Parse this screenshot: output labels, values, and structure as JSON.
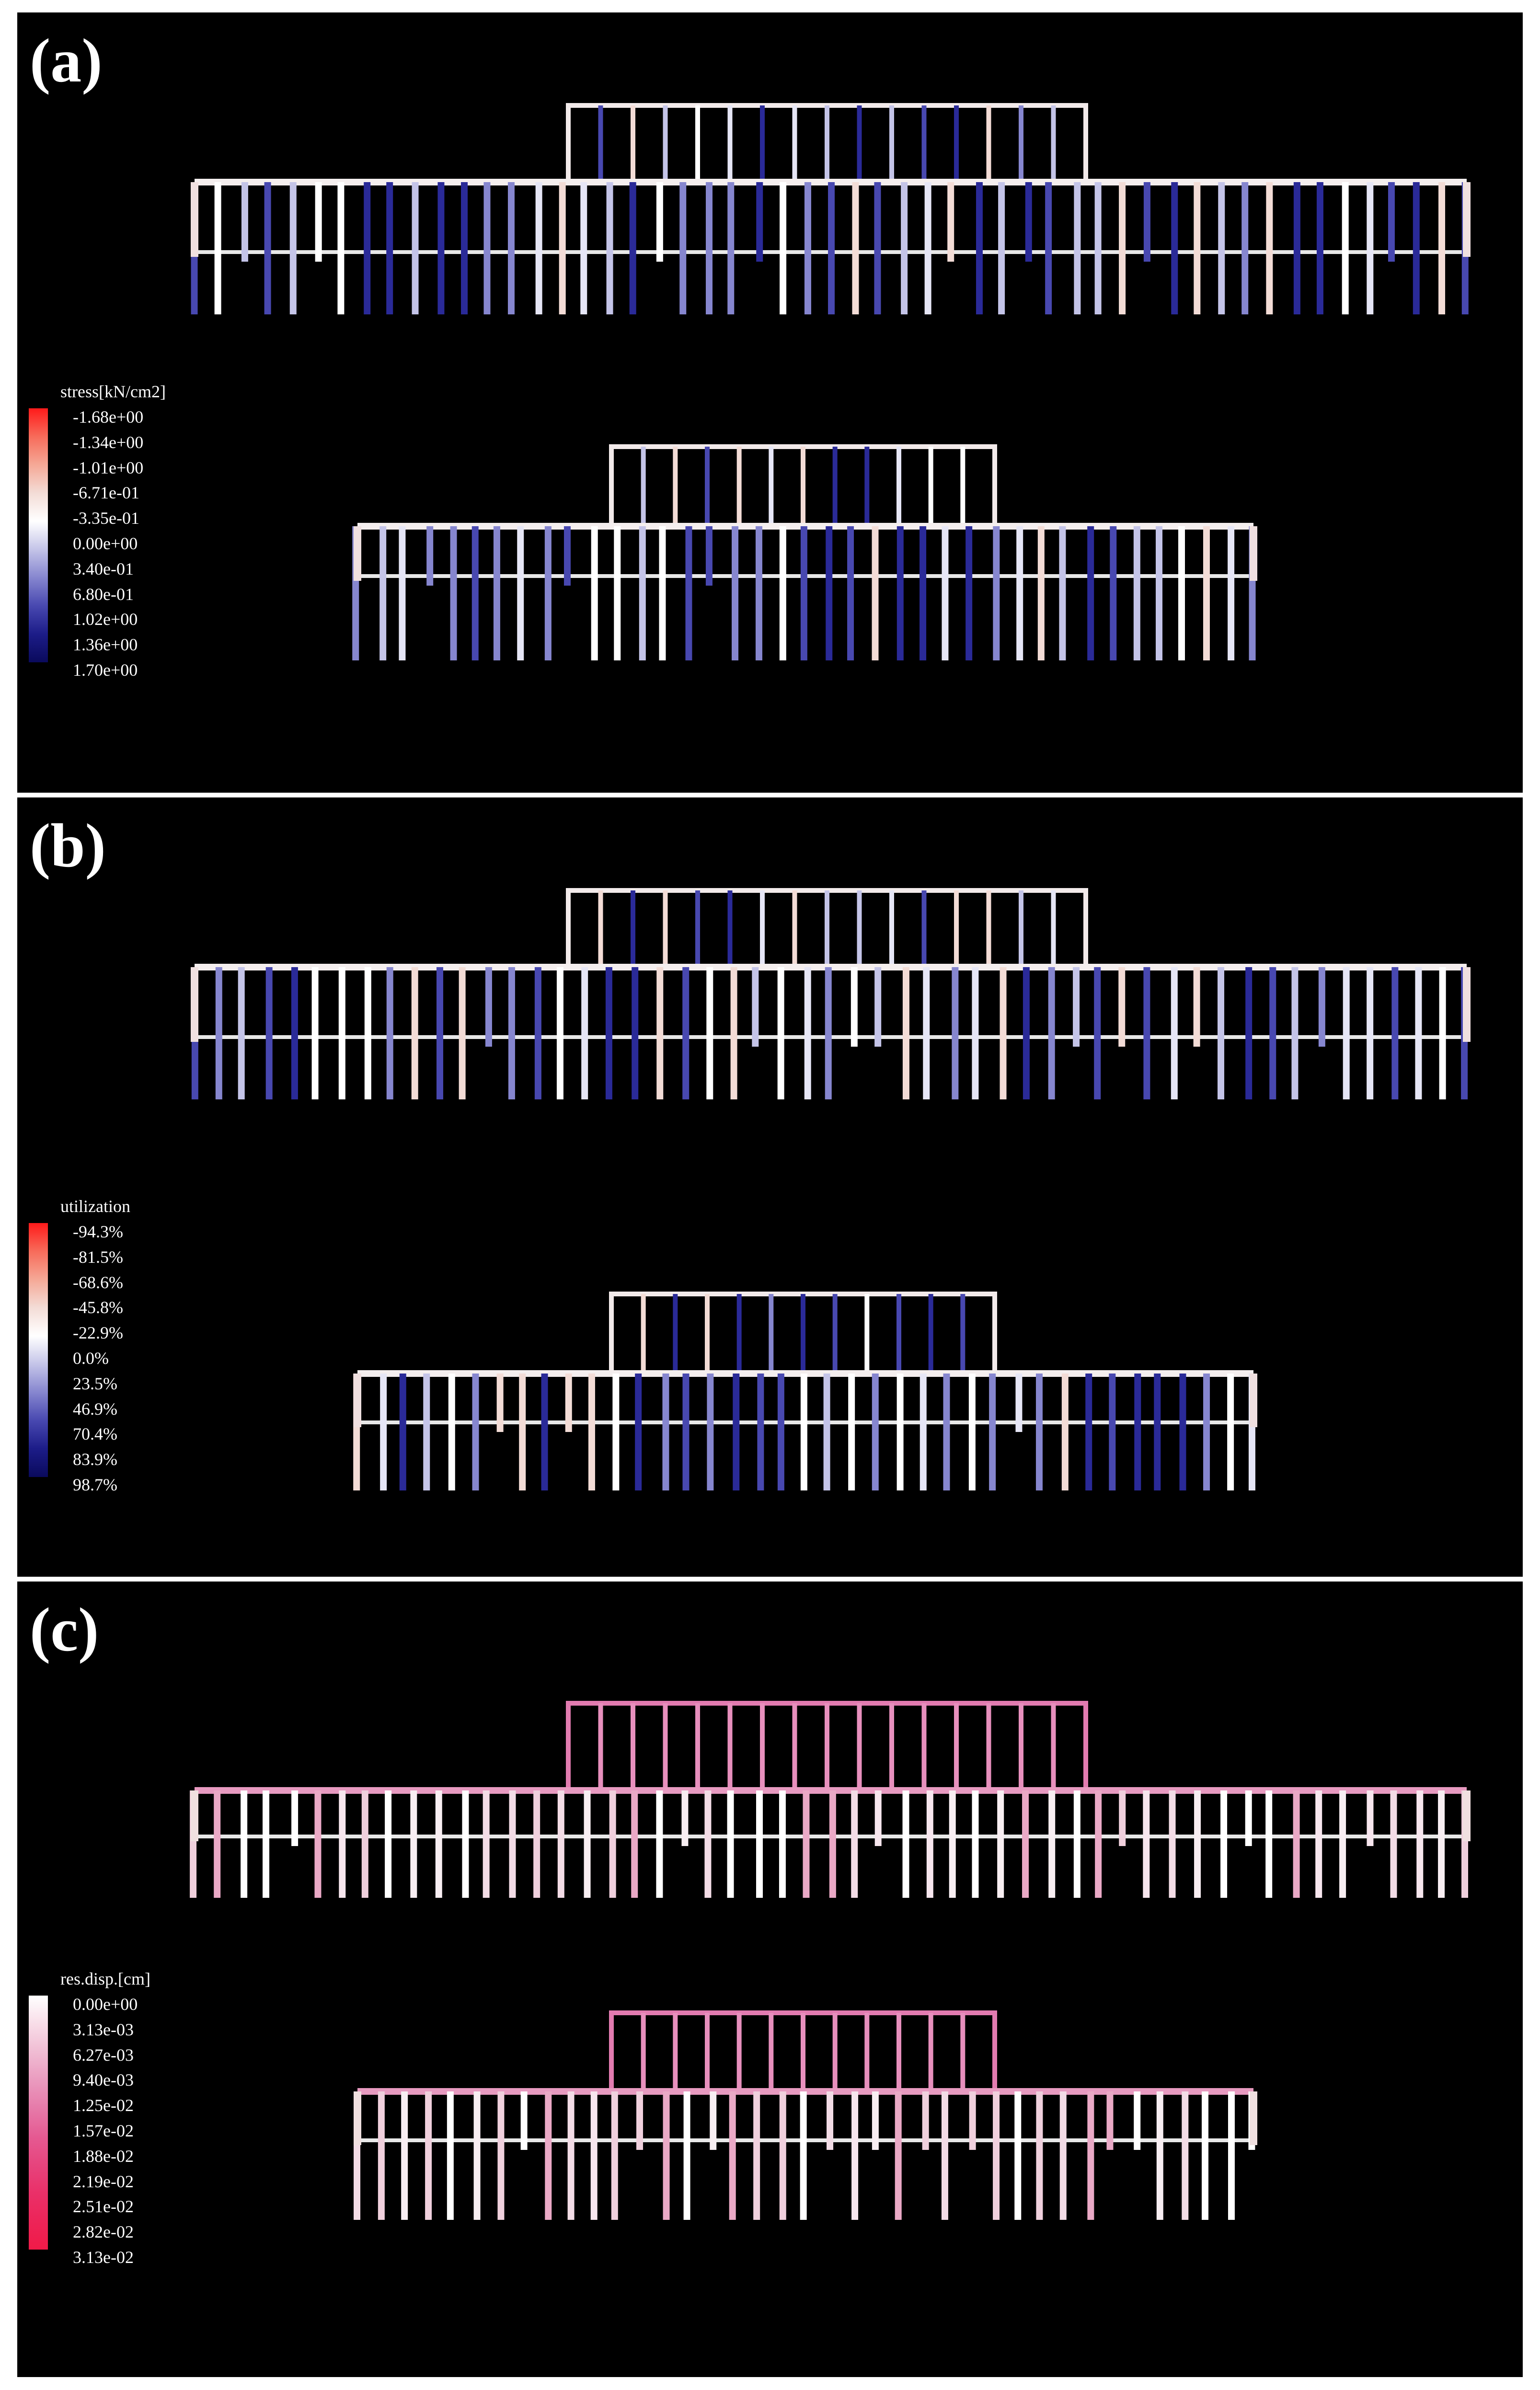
{
  "panels": [
    {
      "label": "(a)",
      "legend": {
        "title": "stress[kN/cm2]",
        "items": [
          "-1.68e+00",
          "-1.34e+00",
          "-1.01e+00",
          "-6.71e-01",
          "-3.35e-01",
          "0.00e+00",
          "3.40e-01",
          "6.80e-01",
          "1.02e+00",
          "1.36e+00",
          "1.70e+00"
        ],
        "colors": [
          "#ff1a1a",
          "#f76b5a",
          "#f5a896",
          "#f3dcd6",
          "#ffffff",
          "#c4c4e8",
          "#8686cf",
          "#4848b0",
          "#1c1c88",
          "#0a0a5c"
        ]
      }
    },
    {
      "label": "(b)",
      "legend": {
        "title": "utilization",
        "items": [
          "-94.3%",
          "-81.5%",
          "-68.6%",
          "-45.8%",
          "-22.9%",
          "0.0%",
          "23.5%",
          "46.9%",
          "70.4%",
          "83.9%",
          "98.7%"
        ],
        "colors": [
          "#ff1a1a",
          "#f76b5a",
          "#f5a896",
          "#f3dcd6",
          "#ffffff",
          "#c4c4e8",
          "#8686cf",
          "#4848b0",
          "#1c1c88",
          "#0a0a5c"
        ]
      }
    },
    {
      "label": "(c)",
      "legend": {
        "title": "res.disp.[cm]",
        "items": [
          "0.00e+00",
          "3.13e-03",
          "6.27e-03",
          "9.40e-03",
          "1.25e-02",
          "1.57e-02",
          "1.88e-02",
          "2.19e-02",
          "2.51e-02",
          "2.82e-02",
          "3.13e-02"
        ],
        "colors": [
          "#ffffff",
          "#f8dde8",
          "#f0bcd3",
          "#ea9bbf",
          "#e67aa9",
          "#e55a92",
          "#e6447d",
          "#ea3068",
          "#ed2458",
          "#f01a48"
        ]
      }
    }
  ]
}
